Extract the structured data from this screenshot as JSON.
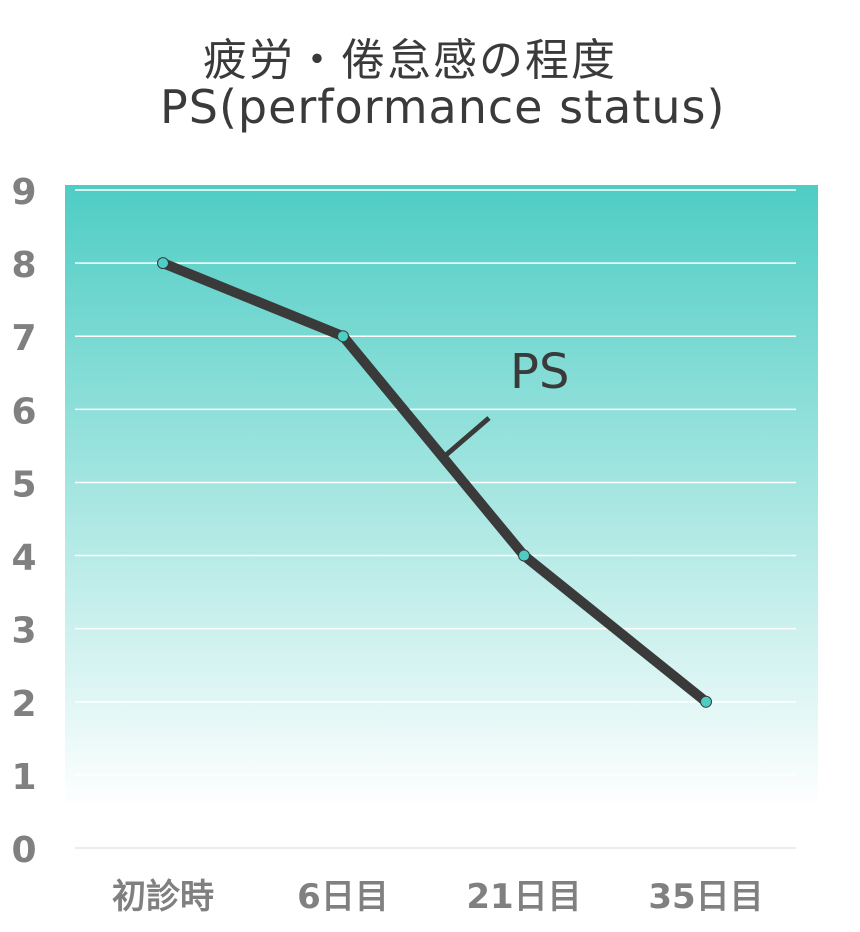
{
  "chart_data": {
    "type": "line",
    "title": "疲労・倦怠感の程度",
    "subtitle": "PS(performance status)",
    "categories": [
      "初診時",
      "6日目",
      "21日目",
      "35日目"
    ],
    "series": [
      {
        "name": "PS",
        "values": [
          8,
          7,
          4,
          2
        ]
      }
    ],
    "ylim": [
      0,
      9
    ],
    "yticks": [
      "0",
      "1",
      "2",
      "3",
      "4",
      "5",
      "6",
      "7",
      "8",
      "9"
    ],
    "grid": true,
    "legend": "inline-label",
    "colors": {
      "line": "#3a3a3a",
      "marker": "#4ecdc4",
      "bg_top": "#4ecdc4",
      "bg_bottom": "#ffffff",
      "gridline": "#ffffff",
      "tick_text": "#808080"
    }
  }
}
